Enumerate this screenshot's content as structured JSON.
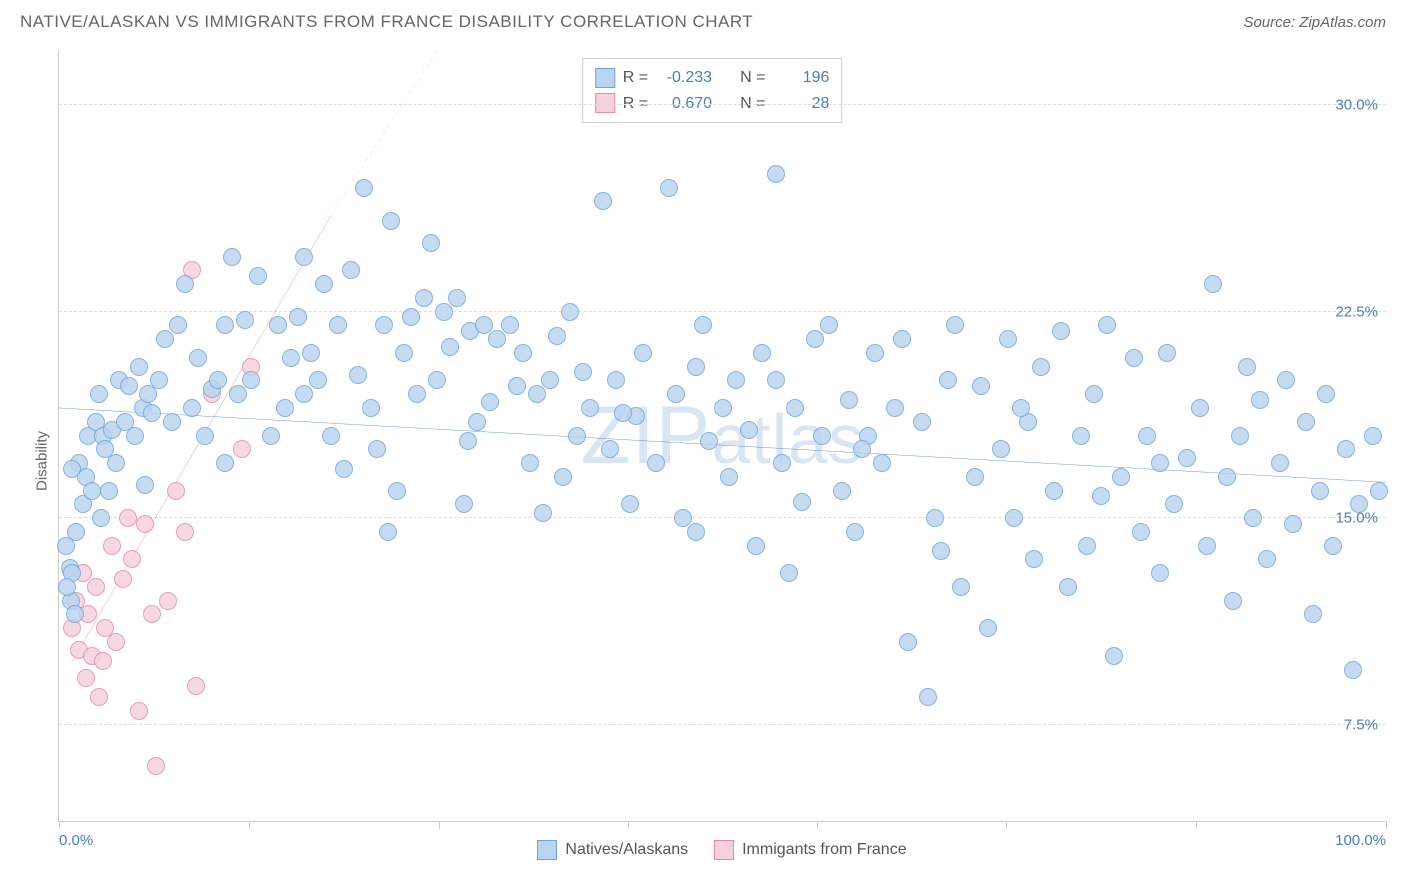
{
  "header": {
    "title": "NATIVE/ALASKAN VS IMMIGRANTS FROM FRANCE DISABILITY CORRELATION CHART",
    "source": "Source: ZipAtlas.com"
  },
  "watermark": {
    "text_pre": "ZIP",
    "text_post": "atlas"
  },
  "chart": {
    "type": "scatter",
    "ylabel": "Disability",
    "xlim": [
      0,
      100
    ],
    "ylim": [
      4,
      32
    ],
    "yticks": [
      7.5,
      15.0,
      22.5,
      30.0
    ],
    "ytick_labels": [
      "7.5%",
      "15.0%",
      "22.5%",
      "30.0%"
    ],
    "xticks": [
      0,
      14.3,
      28.6,
      42.9,
      57.1,
      71.4,
      85.7,
      100
    ],
    "xtick_labels_visible": {
      "0": "0.0%",
      "100": "100.0%"
    },
    "background_color": "#ffffff",
    "grid_color": "#dddddd",
    "axis_color": "#cccccc",
    "tick_label_color": "#4a7ebb",
    "ylabel_color": "#666666",
    "marker_radius": 9,
    "marker_border": 1.2,
    "series": {
      "blue": {
        "label": "Natives/Alaskans",
        "fill_color": "#b9d4f0",
        "stroke_color": "#6fa3db",
        "R": "-0.233",
        "N": "196",
        "trend": {
          "x1": 0,
          "y1": 19.0,
          "x2": 100,
          "y2": 16.3,
          "color": "#2f6fc4",
          "width": 2.5,
          "dash": "none"
        },
        "points": [
          [
            0.5,
            14.0
          ],
          [
            0.8,
            13.2
          ],
          [
            0.9,
            12.0
          ],
          [
            1.0,
            13.0
          ],
          [
            1.2,
            11.5
          ],
          [
            1.3,
            14.5
          ],
          [
            1.5,
            17.0
          ],
          [
            1.8,
            15.5
          ],
          [
            2.0,
            16.5
          ],
          [
            2.2,
            18.0
          ],
          [
            2.5,
            16.0
          ],
          [
            2.8,
            18.5
          ],
          [
            3.0,
            19.5
          ],
          [
            3.3,
            18.0
          ],
          [
            3.5,
            17.5
          ],
          [
            3.8,
            16.0
          ],
          [
            4.0,
            18.2
          ],
          [
            4.3,
            17.0
          ],
          [
            4.5,
            20.0
          ],
          [
            5.0,
            18.5
          ],
          [
            5.3,
            19.8
          ],
          [
            5.7,
            18.0
          ],
          [
            6.0,
            20.5
          ],
          [
            6.3,
            19.0
          ],
          [
            6.7,
            19.5
          ],
          [
            7.0,
            18.8
          ],
          [
            7.5,
            20.0
          ],
          [
            8.0,
            21.5
          ],
          [
            8.5,
            18.5
          ],
          [
            9.0,
            22.0
          ],
          [
            9.5,
            23.5
          ],
          [
            10.0,
            19.0
          ],
          [
            10.5,
            20.8
          ],
          [
            11.0,
            18.0
          ],
          [
            11.5,
            19.7
          ],
          [
            12.0,
            20.0
          ],
          [
            12.5,
            22.0
          ],
          [
            13.0,
            24.5
          ],
          [
            13.5,
            19.5
          ],
          [
            14.0,
            22.2
          ],
          [
            14.5,
            20.0
          ],
          [
            15.0,
            23.8
          ],
          [
            16.0,
            18.0
          ],
          [
            16.5,
            22.0
          ],
          [
            17.0,
            19.0
          ],
          [
            17.5,
            20.8
          ],
          [
            18.0,
            22.3
          ],
          [
            18.5,
            19.5
          ],
          [
            19.0,
            21.0
          ],
          [
            19.5,
            20.0
          ],
          [
            20.0,
            23.5
          ],
          [
            20.5,
            18.0
          ],
          [
            21.0,
            22.0
          ],
          [
            21.5,
            16.8
          ],
          [
            22.0,
            24.0
          ],
          [
            22.5,
            20.2
          ],
          [
            23.0,
            27.0
          ],
          [
            23.5,
            19.0
          ],
          [
            24.0,
            17.5
          ],
          [
            24.5,
            22.0
          ],
          [
            25.0,
            25.8
          ],
          [
            25.5,
            16.0
          ],
          [
            26.0,
            21.0
          ],
          [
            26.5,
            22.3
          ],
          [
            27.0,
            19.5
          ],
          [
            27.5,
            23.0
          ],
          [
            28.0,
            25.0
          ],
          [
            28.5,
            20.0
          ],
          [
            29.0,
            22.5
          ],
          [
            29.5,
            21.2
          ],
          [
            30.0,
            23.0
          ],
          [
            30.5,
            15.5
          ],
          [
            31.0,
            21.8
          ],
          [
            31.5,
            18.5
          ],
          [
            32.0,
            22.0
          ],
          [
            32.5,
            19.2
          ],
          [
            33.0,
            21.5
          ],
          [
            34.0,
            22.0
          ],
          [
            34.5,
            19.8
          ],
          [
            35.0,
            21.0
          ],
          [
            35.5,
            17.0
          ],
          [
            36.0,
            19.5
          ],
          [
            37.0,
            20.0
          ],
          [
            37.5,
            21.6
          ],
          [
            38.0,
            16.5
          ],
          [
            38.5,
            22.5
          ],
          [
            39.0,
            18.0
          ],
          [
            39.5,
            20.3
          ],
          [
            40.0,
            19.0
          ],
          [
            41.0,
            26.5
          ],
          [
            41.5,
            17.5
          ],
          [
            42.0,
            20.0
          ],
          [
            43.0,
            15.5
          ],
          [
            43.5,
            18.7
          ],
          [
            44.0,
            21.0
          ],
          [
            45.0,
            17.0
          ],
          [
            46.0,
            27.0
          ],
          [
            46.5,
            19.5
          ],
          [
            47.0,
            15.0
          ],
          [
            48.0,
            20.5
          ],
          [
            48.5,
            22.0
          ],
          [
            49.0,
            17.8
          ],
          [
            50.0,
            19.0
          ],
          [
            50.5,
            16.5
          ],
          [
            51.0,
            20.0
          ],
          [
            52.0,
            18.2
          ],
          [
            52.5,
            14.0
          ],
          [
            53.0,
            21.0
          ],
          [
            54.0,
            27.5
          ],
          [
            54.5,
            17.0
          ],
          [
            55.0,
            13.0
          ],
          [
            55.5,
            19.0
          ],
          [
            56.0,
            15.6
          ],
          [
            57.0,
            21.5
          ],
          [
            57.5,
            18.0
          ],
          [
            58.0,
            22.0
          ],
          [
            59.0,
            16.0
          ],
          [
            59.5,
            19.3
          ],
          [
            60.0,
            14.5
          ],
          [
            61.0,
            18.0
          ],
          [
            61.5,
            21.0
          ],
          [
            62.0,
            17.0
          ],
          [
            63.0,
            19.0
          ],
          [
            63.5,
            21.5
          ],
          [
            64.0,
            10.5
          ],
          [
            65.0,
            18.5
          ],
          [
            65.5,
            8.5
          ],
          [
            66.0,
            15.0
          ],
          [
            67.0,
            20.0
          ],
          [
            67.5,
            22.0
          ],
          [
            68.0,
            12.5
          ],
          [
            69.0,
            16.5
          ],
          [
            69.5,
            19.8
          ],
          [
            70.0,
            11.0
          ],
          [
            71.0,
            17.5
          ],
          [
            71.5,
            21.5
          ],
          [
            72.0,
            15.0
          ],
          [
            73.0,
            18.5
          ],
          [
            73.5,
            13.5
          ],
          [
            74.0,
            20.5
          ],
          [
            75.0,
            16.0
          ],
          [
            75.5,
            21.8
          ],
          [
            76.0,
            12.5
          ],
          [
            77.0,
            18.0
          ],
          [
            77.5,
            14.0
          ],
          [
            78.0,
            19.5
          ],
          [
            79.0,
            22.0
          ],
          [
            79.5,
            10.0
          ],
          [
            80.0,
            16.5
          ],
          [
            81.0,
            20.8
          ],
          [
            81.5,
            14.5
          ],
          [
            82.0,
            18.0
          ],
          [
            83.0,
            13.0
          ],
          [
            83.5,
            21.0
          ],
          [
            84.0,
            15.5
          ],
          [
            85.0,
            17.2
          ],
          [
            86.0,
            19.0
          ],
          [
            86.5,
            14.0
          ],
          [
            87.0,
            23.5
          ],
          [
            88.0,
            16.5
          ],
          [
            88.5,
            12.0
          ],
          [
            89.0,
            18.0
          ],
          [
            90.0,
            15.0
          ],
          [
            90.5,
            19.3
          ],
          [
            91.0,
            13.5
          ],
          [
            92.0,
            17.0
          ],
          [
            92.5,
            20.0
          ],
          [
            93.0,
            14.8
          ],
          [
            94.0,
            18.5
          ],
          [
            94.5,
            11.5
          ],
          [
            95.0,
            16.0
          ],
          [
            95.5,
            19.5
          ],
          [
            96.0,
            14.0
          ],
          [
            97.0,
            17.5
          ],
          [
            97.5,
            9.5
          ],
          [
            98.0,
            15.5
          ],
          [
            99.0,
            18.0
          ],
          [
            99.5,
            16.0
          ],
          [
            89.5,
            20.5
          ],
          [
            83.0,
            17.0
          ],
          [
            78.5,
            15.8
          ],
          [
            72.5,
            19.0
          ],
          [
            66.5,
            13.8
          ],
          [
            60.5,
            17.5
          ],
          [
            54.0,
            20.0
          ],
          [
            48.0,
            14.5
          ],
          [
            42.5,
            18.8
          ],
          [
            36.5,
            15.2
          ],
          [
            30.8,
            17.8
          ],
          [
            24.8,
            14.5
          ],
          [
            18.5,
            24.5
          ],
          [
            12.5,
            17.0
          ],
          [
            6.5,
            16.2
          ],
          [
            3.2,
            15.0
          ],
          [
            1.0,
            16.8
          ],
          [
            0.6,
            12.5
          ]
        ]
      },
      "pink": {
        "label": "Immigants from France",
        "fill_color": "#f6d0da",
        "stroke_color": "#e58aa3",
        "R": "0.670",
        "N": "28",
        "trend_solid": {
          "x1": 1,
          "y1": 9.8,
          "x2": 20.5,
          "y2": 26.0,
          "color": "#e0567a",
          "width": 2.2
        },
        "trend_dash": {
          "x1": 20.5,
          "y1": 26.0,
          "x2": 28.5,
          "y2": 32.0,
          "color": "#e9a3b6",
          "width": 1.8
        },
        "points": [
          [
            1.0,
            11.0
          ],
          [
            1.3,
            12.0
          ],
          [
            1.5,
            10.2
          ],
          [
            1.8,
            13.0
          ],
          [
            2.0,
            9.2
          ],
          [
            2.2,
            11.5
          ],
          [
            2.5,
            10.0
          ],
          [
            2.8,
            12.5
          ],
          [
            3.0,
            8.5
          ],
          [
            3.3,
            9.8
          ],
          [
            3.5,
            11.0
          ],
          [
            4.0,
            14.0
          ],
          [
            4.3,
            10.5
          ],
          [
            4.8,
            12.8
          ],
          [
            5.2,
            15.0
          ],
          [
            5.5,
            13.5
          ],
          [
            6.0,
            8.0
          ],
          [
            6.5,
            14.8
          ],
          [
            7.0,
            11.5
          ],
          [
            7.3,
            6.0
          ],
          [
            8.2,
            12.0
          ],
          [
            8.8,
            16.0
          ],
          [
            9.5,
            14.5
          ],
          [
            10.0,
            24.0
          ],
          [
            10.3,
            8.9
          ],
          [
            11.5,
            19.5
          ],
          [
            13.8,
            17.5
          ],
          [
            14.5,
            20.5
          ]
        ]
      }
    },
    "r_legend": {
      "border_color": "#cfcfcf",
      "label_R": "R =",
      "label_N": "N ="
    },
    "bottom_legend": {
      "items": [
        "blue",
        "pink"
      ]
    }
  }
}
